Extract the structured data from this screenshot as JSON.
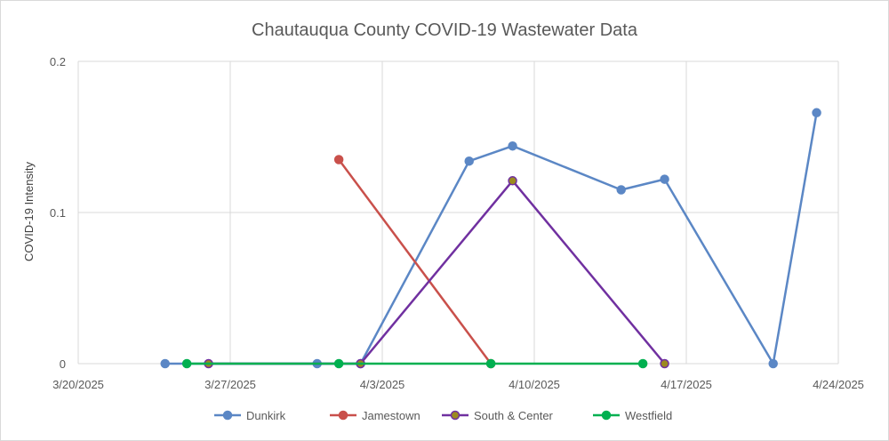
{
  "chart_data": {
    "type": "line",
    "title": "Chautauqua County COVID-19 Wastewater Data",
    "xlabel": "",
    "ylabel": "COVID-19 Intensity",
    "x_ticks": [
      "3/20/2025",
      "3/27/2025",
      "4/3/2025",
      "4/10/2025",
      "4/17/2025",
      "4/24/2025"
    ],
    "y_ticks": [
      "0",
      "0.1",
      "0.2"
    ],
    "xlim": [
      "3/20/2025",
      "4/24/2025"
    ],
    "ylim": [
      0,
      0.2
    ],
    "grid": true,
    "legend_position": "bottom",
    "series": [
      {
        "name": "Dunkirk",
        "color": "#5b87c5",
        "marker_fill": "#5b87c5",
        "points": [
          {
            "x": "3/24/2025",
            "y": 0
          },
          {
            "x": "3/31/2025",
            "y": 0
          },
          {
            "x": "4/2/2025",
            "y": 0
          },
          {
            "x": "4/7/2025",
            "y": 0.134
          },
          {
            "x": "4/9/2025",
            "y": 0.144
          },
          {
            "x": "4/14/2025",
            "y": 0.115
          },
          {
            "x": "4/16/2025",
            "y": 0.122
          },
          {
            "x": "4/21/2025",
            "y": 0
          },
          {
            "x": "4/23/2025",
            "y": 0.166
          }
        ]
      },
      {
        "name": "Jamestown",
        "color": "#c9504b",
        "marker_fill": "#c9504b",
        "points": [
          {
            "x": "4/1/2025",
            "y": 0.135
          },
          {
            "x": "4/8/2025",
            "y": 0
          }
        ]
      },
      {
        "name": "South & Center",
        "color": "#7030a0",
        "marker_fill": "#9c8a1f",
        "points": [
          {
            "x": "3/26/2025",
            "y": 0
          },
          {
            "x": "4/2/2025",
            "y": 0
          },
          {
            "x": "4/9/2025",
            "y": 0.121
          },
          {
            "x": "4/16/2025",
            "y": 0
          }
        ]
      },
      {
        "name": "Westfield",
        "color": "#00b050",
        "marker_fill": "#00b050",
        "points": [
          {
            "x": "3/25/2025",
            "y": 0
          },
          {
            "x": "4/1/2025",
            "y": 0
          },
          {
            "x": "4/8/2025",
            "y": 0
          },
          {
            "x": "4/15/2025",
            "y": 0
          }
        ]
      }
    ]
  }
}
